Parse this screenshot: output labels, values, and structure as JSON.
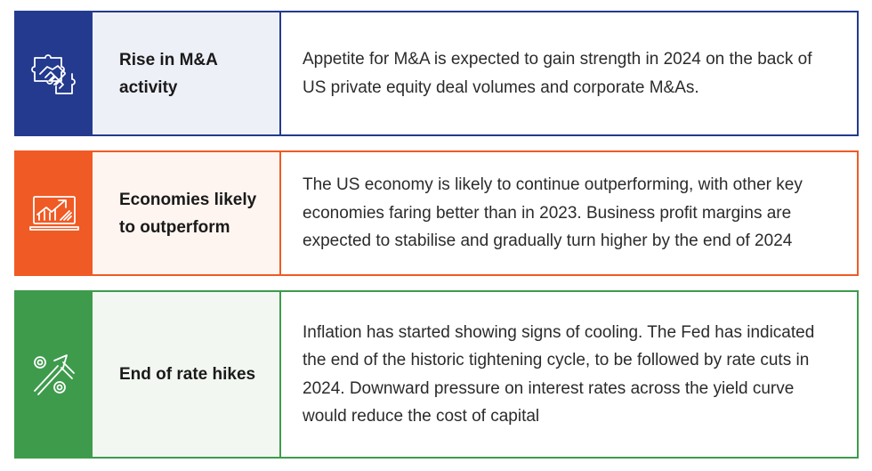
{
  "colors": {
    "blue": "#233a8e",
    "blue_tint": "#eef0f8",
    "orange": "#f05a24",
    "orange_tint": "#fef5f0",
    "green": "#3e9b4c",
    "green_tint": "#f2f8f1"
  },
  "rows": [
    {
      "icon": "handshake-puzzle-icon",
      "title": "Rise in M&A activity",
      "description": "Appetite for M&A is expected to gain strength in 2024 on the back of US private equity deal volumes and corporate M&As."
    },
    {
      "icon": "rising-chart-laptop-icon",
      "title": "Economies likely to outperform",
      "description": "The US economy is likely to continue outperforming, with other key economies faring better than in 2023. Business profit margins are expected to stabilise and gradually turn higher by the end of 2024"
    },
    {
      "icon": "percent-arrow-icon",
      "title": "End of rate hikes",
      "description": "Inflation has started showing signs of cooling. The Fed has indicated the end of the historic tightening cycle, to be followed by rate cuts in 2024. Downward pressure on interest rates across the yield curve would reduce the cost of capital"
    }
  ]
}
